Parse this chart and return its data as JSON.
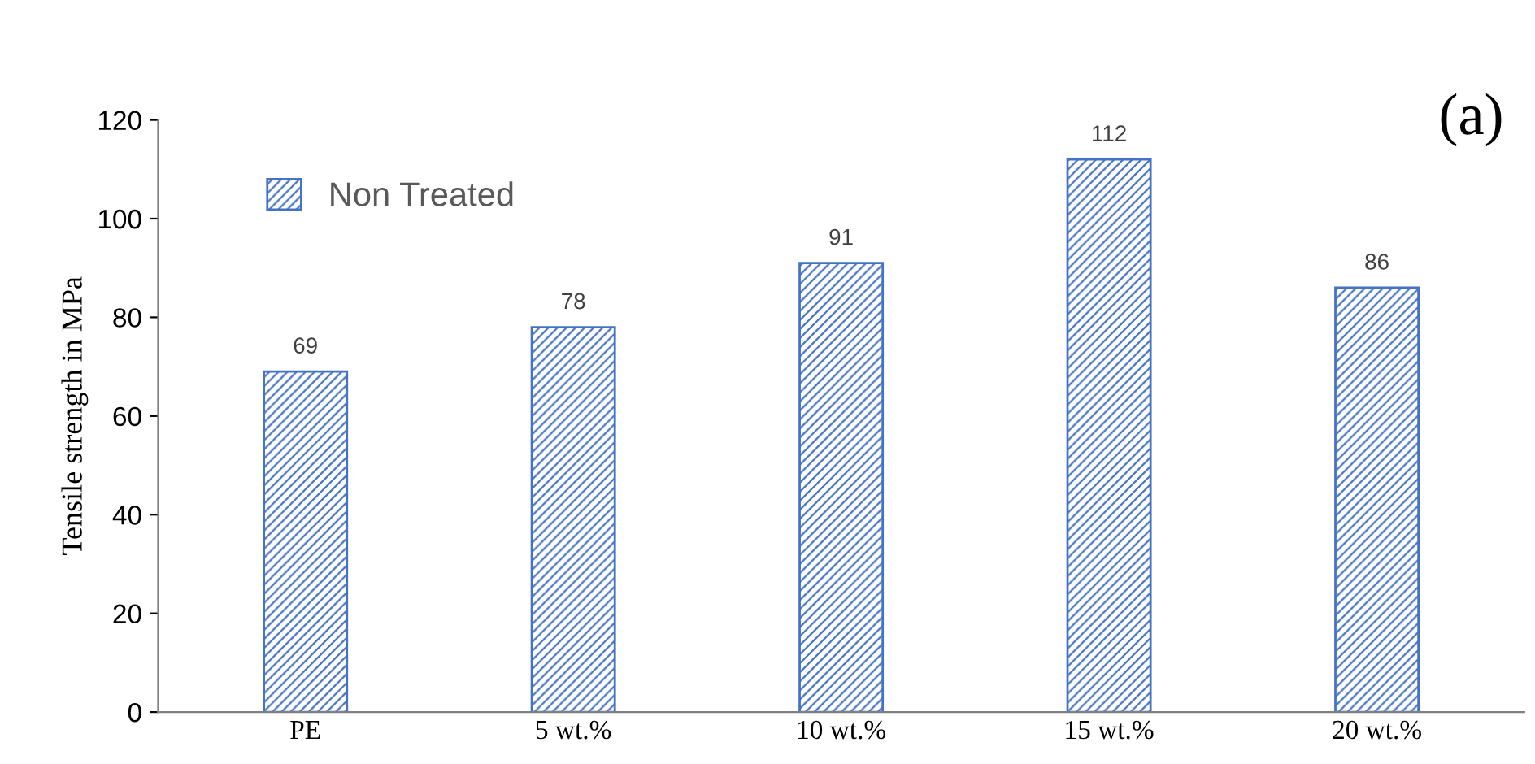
{
  "chart_data": {
    "type": "bar",
    "ylabel": "Tensile strength in MPa",
    "categories": [
      "PE",
      "5 wt.%",
      "10 wt.%",
      "15 wt.%",
      "20 wt.%"
    ],
    "series": [
      {
        "name": "Non Treated",
        "color": "#4472c4",
        "values": [
          69,
          78,
          91,
          112,
          86
        ]
      }
    ],
    "ylim": [
      0,
      120
    ],
    "yticks": [
      0,
      20,
      40,
      60,
      80,
      100,
      120
    ],
    "data_labels": true,
    "legend": "top left",
    "grid": false,
    "annotations": [
      "(a)"
    ]
  }
}
